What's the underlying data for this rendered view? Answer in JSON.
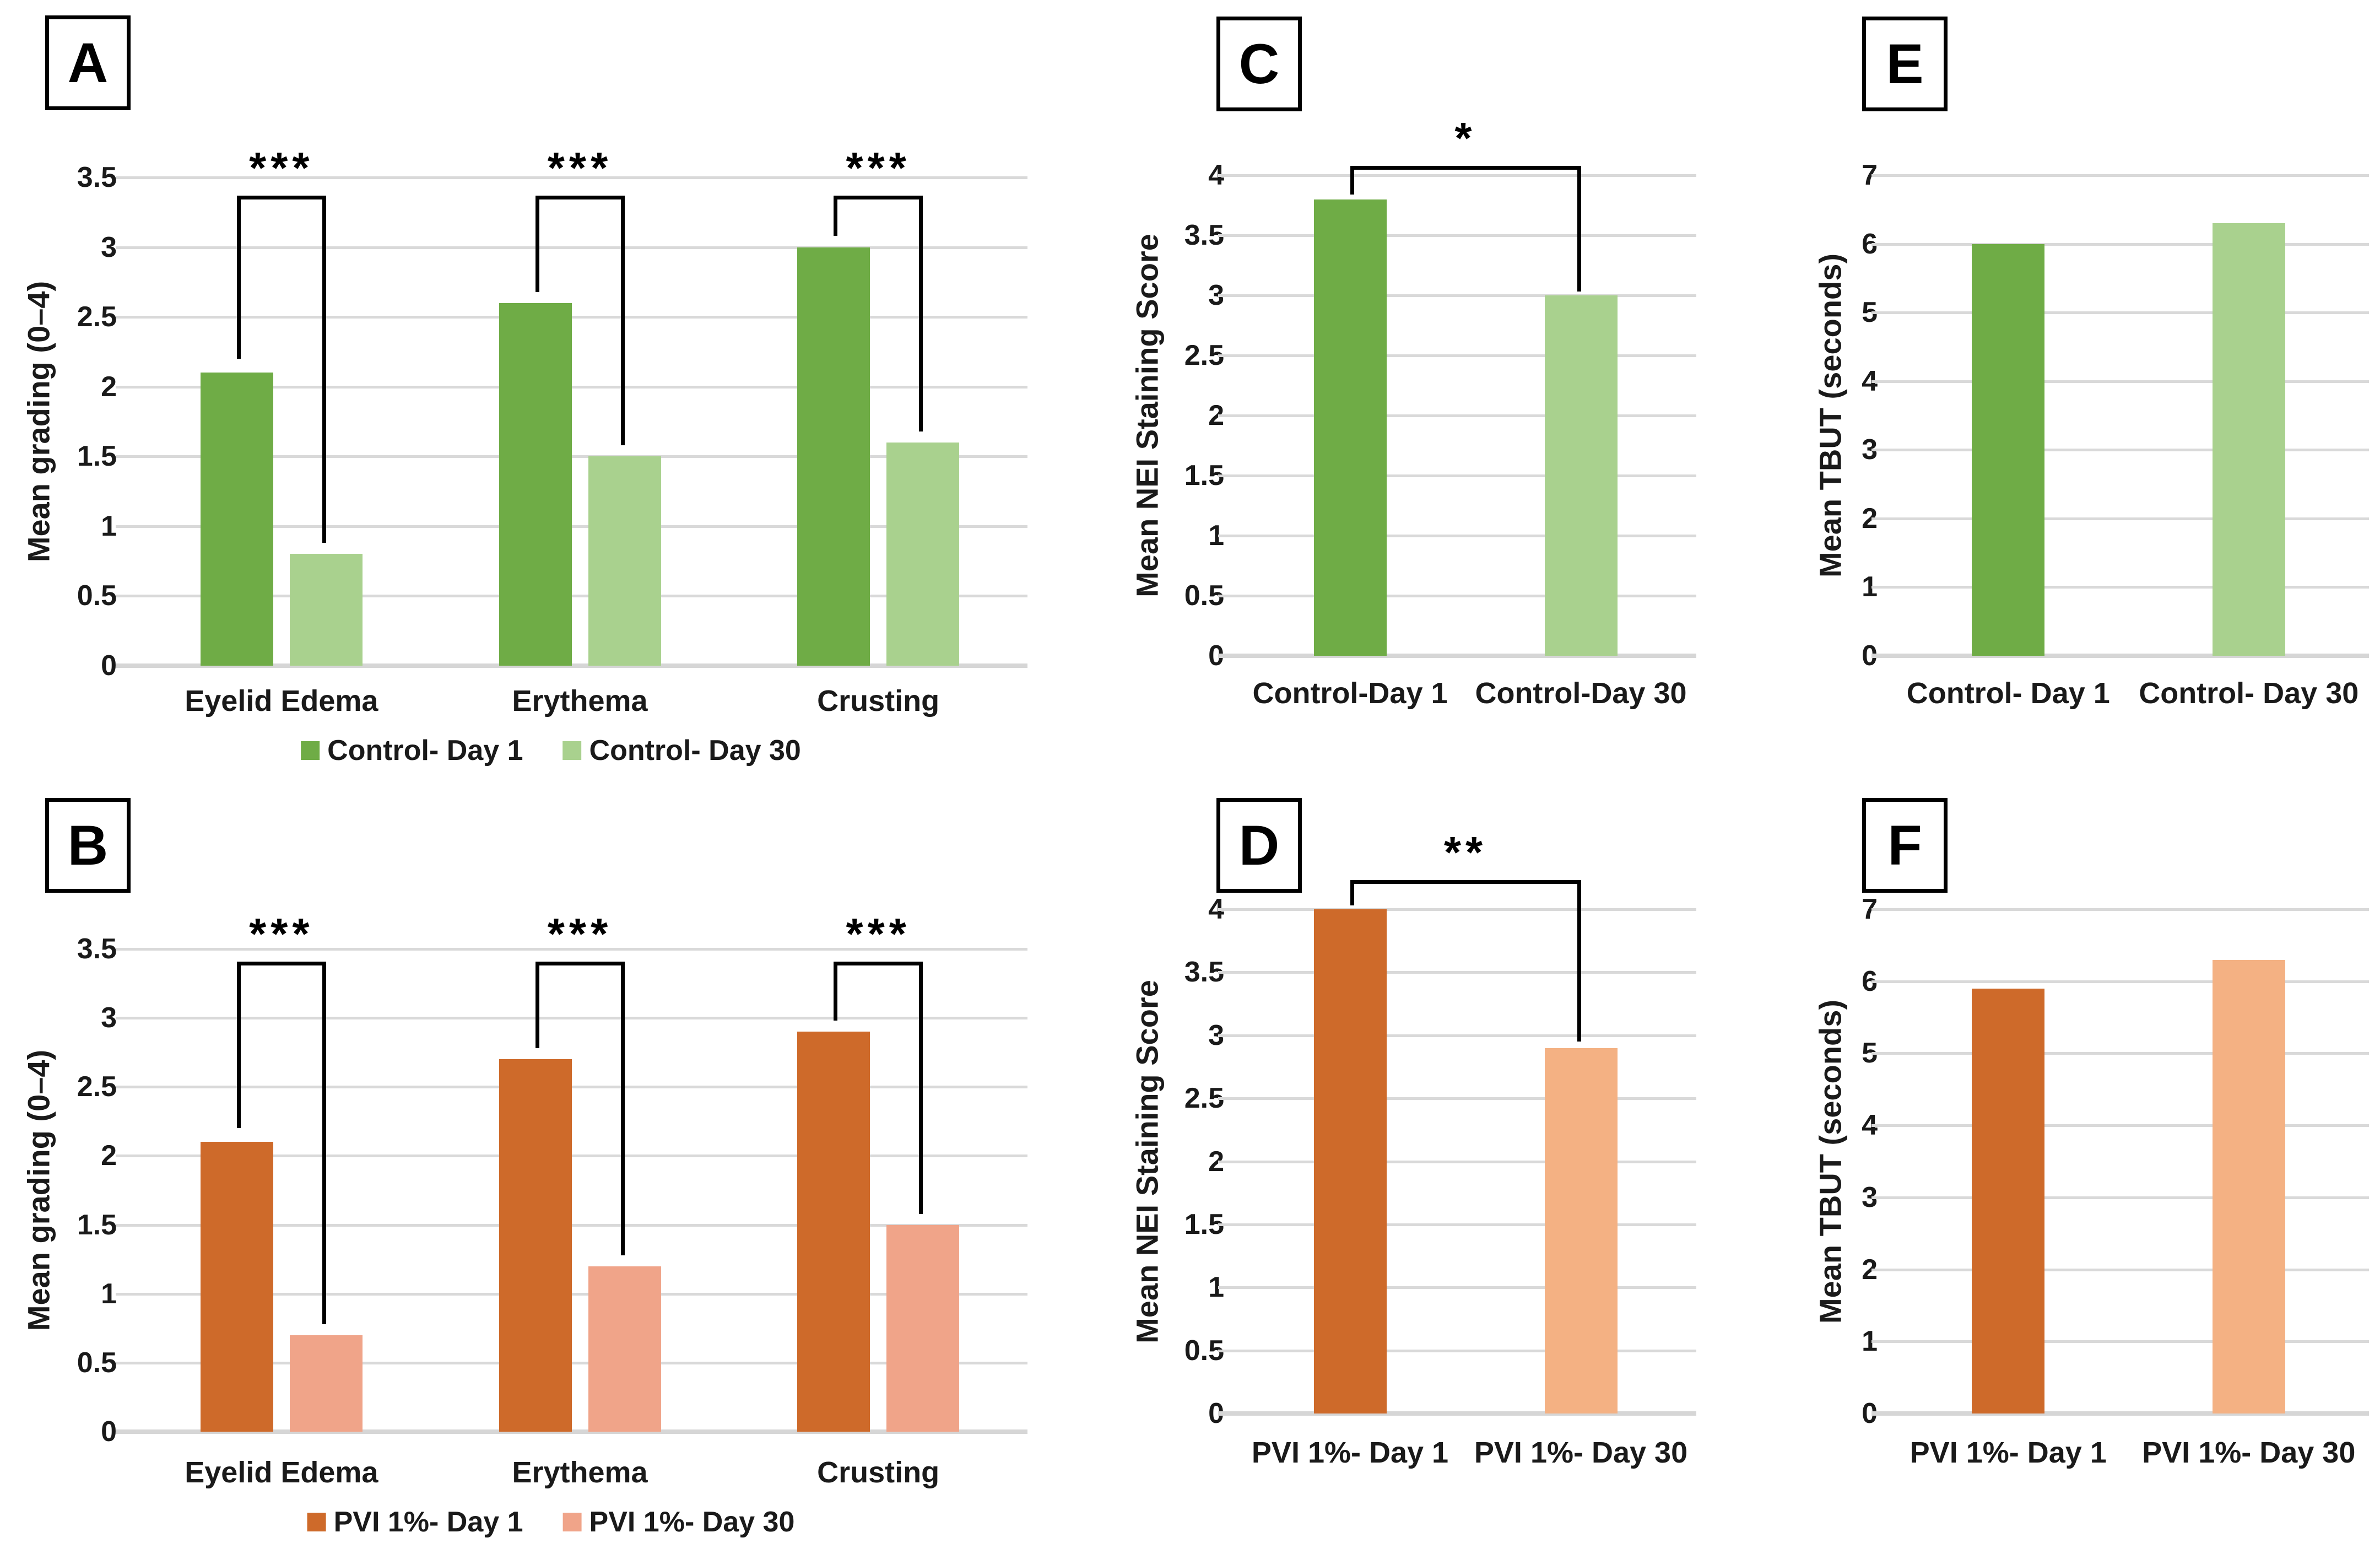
{
  "figure": {
    "description_colors": {
      "control_day1_green": "#6FAC46",
      "control_day30_green": "#A9D18E",
      "pvi_day1_orange": "#CE6A2A",
      "pvi_day30_orange_b": "#F0A489",
      "pvi_day30_orange_df": "#F4B183",
      "gridline_gray": "#D9D9D9",
      "text_black": "#1a1a1a"
    }
  },
  "chart_data": [
    {
      "id": "A",
      "type": "bar",
      "grouping": "grouped",
      "panel_letter": "A",
      "ylabel": "Mean grading (0–4)",
      "ymax": 3.5,
      "tick_step": 0.5,
      "grid": true,
      "legend_position": "bottom",
      "categories": [
        "Eyelid Edema",
        "Erythema",
        "Crusting"
      ],
      "series": [
        {
          "name": "Control- Day 1",
          "color": "#6FAC46",
          "values": [
            2.1,
            2.6,
            3.0
          ]
        },
        {
          "name": "Control- Day 30",
          "color": "#A9D18E",
          "values": [
            0.8,
            1.5,
            1.6
          ]
        }
      ],
      "legend": true,
      "brackets": [
        {
          "category": 0,
          "label": "***",
          "top": 3.37,
          "left_end": 2.2,
          "right_end": 0.88
        },
        {
          "category": 1,
          "label": "***",
          "top": 3.37,
          "left_end": 2.68,
          "right_end": 1.58
        },
        {
          "category": 2,
          "label": "***",
          "top": 3.37,
          "left_end": 3.08,
          "right_end": 1.68
        }
      ]
    },
    {
      "id": "B",
      "type": "bar",
      "grouping": "grouped",
      "panel_letter": "B",
      "ylabel": "Mean grading (0–4)",
      "ymax": 3.5,
      "tick_step": 0.5,
      "grid": true,
      "legend_position": "bottom",
      "categories": [
        "Eyelid Edema",
        "Erythema",
        "Crusting"
      ],
      "series": [
        {
          "name": "PVI 1%- Day 1",
          "color": "#CE6A2A",
          "values": [
            2.1,
            2.7,
            2.9
          ]
        },
        {
          "name": "PVI 1%- Day 30",
          "color": "#F0A489",
          "values": [
            0.7,
            1.2,
            1.5
          ]
        }
      ],
      "legend": true,
      "brackets": [
        {
          "category": 0,
          "label": "***",
          "top": 3.41,
          "left_end": 2.2,
          "right_end": 0.78
        },
        {
          "category": 1,
          "label": "***",
          "top": 3.41,
          "left_end": 2.78,
          "right_end": 1.28
        },
        {
          "category": 2,
          "label": "***",
          "top": 3.41,
          "left_end": 2.98,
          "right_end": 1.58
        }
      ]
    },
    {
      "id": "C",
      "type": "bar",
      "grouping": "pair",
      "panel_letter": "C",
      "ylabel": "Mean NEI Staining Score",
      "ymax": 4,
      "tick_step": 0.5,
      "grid": true,
      "bars": [
        {
          "label": "Control-Day 1",
          "value": 3.8,
          "color": "#6FAC46"
        },
        {
          "label": "Control-Day 30",
          "value": 3.0,
          "color": "#A9D18E"
        }
      ],
      "legend": false,
      "brackets": [
        {
          "label": "*",
          "top": 4.08,
          "left_end": 3.84,
          "right_end": 3.03
        }
      ]
    },
    {
      "id": "D",
      "type": "bar",
      "grouping": "pair",
      "panel_letter": "D",
      "ylabel": "Mean NEI Staining Score",
      "ymax": 4,
      "tick_step": 0.5,
      "grid": true,
      "bars": [
        {
          "label": "PVI 1%- Day 1",
          "value": 4.0,
          "color": "#CE6A2A"
        },
        {
          "label": "PVI 1%- Day 30",
          "value": 2.9,
          "color": "#F4B183"
        }
      ],
      "legend": false,
      "brackets": [
        {
          "label": "**",
          "top": 4.23,
          "left_end": 4.03,
          "right_end": 2.95
        }
      ]
    },
    {
      "id": "E",
      "type": "bar",
      "grouping": "pair",
      "panel_letter": "E",
      "ylabel": "Mean TBUT (seconds)",
      "ymax": 7,
      "tick_step": 1,
      "grid": true,
      "bars": [
        {
          "label": "Control- Day 1",
          "value": 6.0,
          "color": "#6FAC46"
        },
        {
          "label": "Control- Day 30",
          "value": 6.3,
          "color": "#A9D18E"
        }
      ],
      "legend": false,
      "brackets": []
    },
    {
      "id": "F",
      "type": "bar",
      "grouping": "pair",
      "panel_letter": "F",
      "ylabel": "Mean TBUT (seconds)",
      "ymax": 7,
      "tick_step": 1,
      "grid": true,
      "bars": [
        {
          "label": "PVI 1%- Day 1",
          "value": 5.9,
          "color": "#CE6A2A"
        },
        {
          "label": "PVI 1%- Day 30",
          "value": 6.3,
          "color": "#F4B183"
        }
      ],
      "legend": false,
      "brackets": []
    }
  ]
}
